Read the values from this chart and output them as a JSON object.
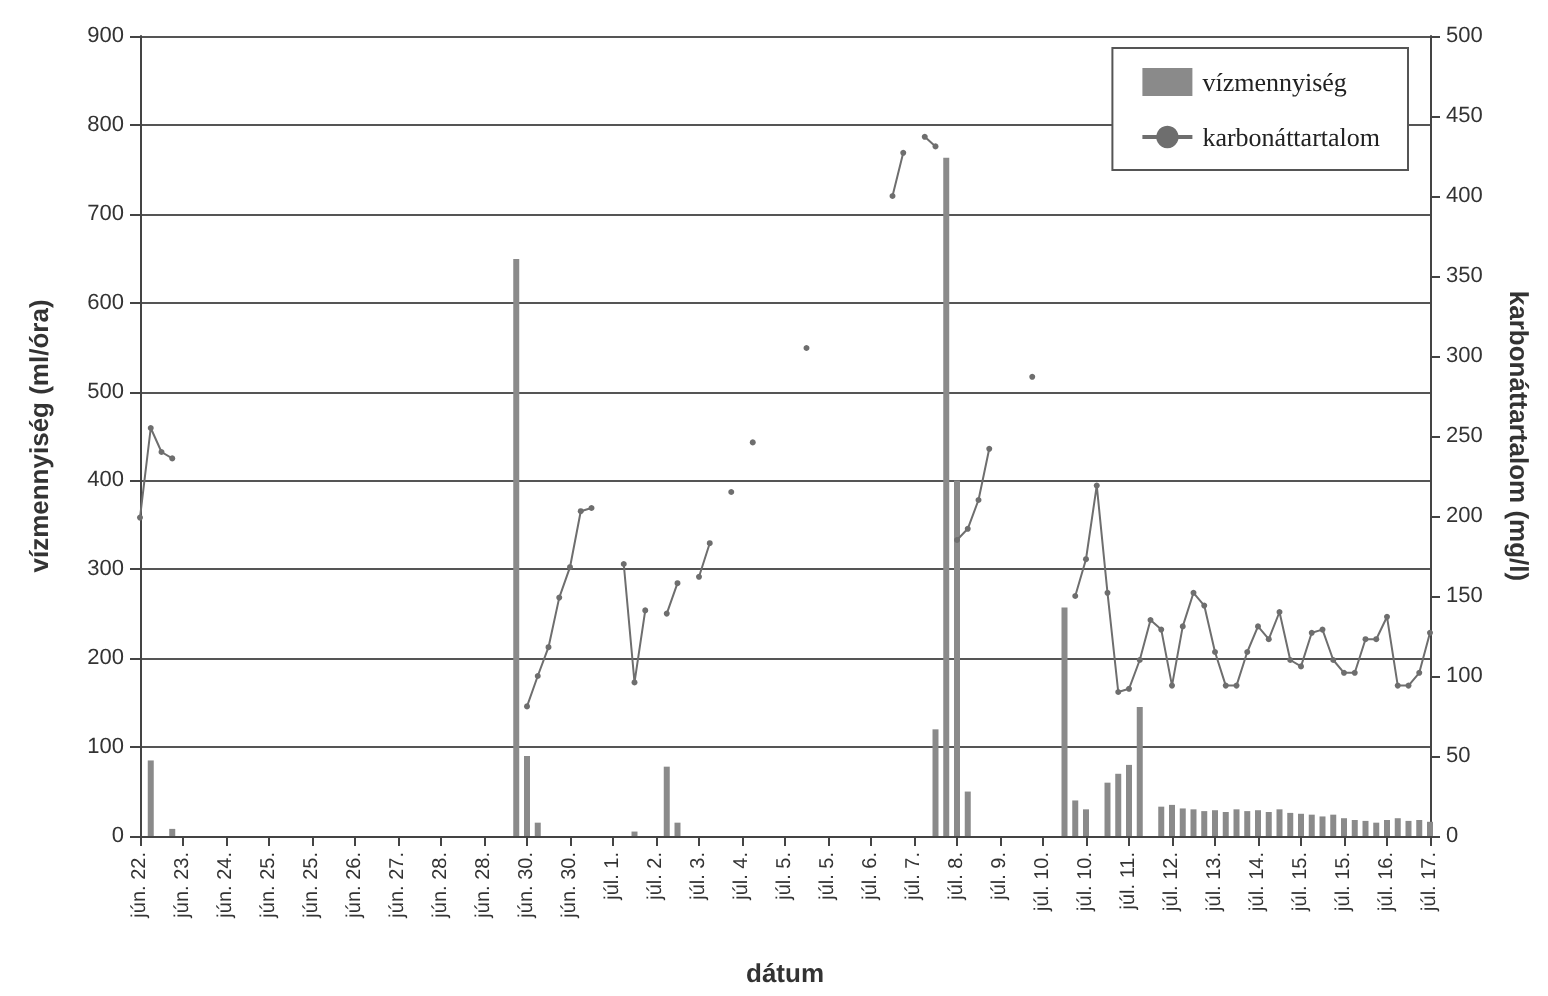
{
  "chart_data": {
    "type": "bar",
    "xlabel": "dátum",
    "ylabel": "vízmennyiség (ml/óra)",
    "y2label": "karbonáttartalom (mg/l)",
    "categories": [
      "jún. 22.",
      null,
      null,
      null,
      "jún. 23.",
      null,
      null,
      null,
      "jún. 24.",
      null,
      null,
      null,
      "jún. 25.",
      null,
      null,
      null,
      "jún. 25.",
      null,
      null,
      null,
      "jún. 26.",
      null,
      null,
      null,
      "jún. 27.",
      null,
      null,
      null,
      "jún. 28.",
      null,
      null,
      null,
      "jún. 28.",
      null,
      null,
      null,
      "jún. 30.",
      null,
      null,
      null,
      "jún. 30.",
      null,
      null,
      null,
      "júl. 1.",
      null,
      null,
      null,
      "júl. 2.",
      null,
      null,
      null,
      "júl. 3.",
      null,
      null,
      null,
      "júl. 4.",
      null,
      null,
      null,
      "júl. 5.",
      null,
      null,
      null,
      "júl. 5.",
      null,
      null,
      null,
      "júl. 6.",
      null,
      null,
      null,
      "júl. 7.",
      null,
      null,
      null,
      "júl. 8.",
      null,
      null,
      null,
      "júl. 9.",
      null,
      null,
      null,
      "júl. 10.",
      null,
      null,
      null,
      "júl. 10.",
      null,
      null,
      null,
      "júl. 11.",
      null,
      null,
      null,
      "júl. 12.",
      null,
      null,
      null,
      "júl. 13.",
      null,
      null,
      null,
      "júl. 14.",
      null,
      null,
      null,
      "júl. 15.",
      null,
      null,
      null,
      "júl. 15.",
      null,
      null,
      null,
      "júl. 16.",
      null,
      null,
      null,
      "júl. 17."
    ],
    "ylim": [
      0,
      900
    ],
    "yticks": [
      0,
      100,
      200,
      300,
      400,
      500,
      600,
      700,
      800,
      900
    ],
    "y2lim": [
      0,
      500
    ],
    "y2ticks": [
      0,
      50,
      100,
      150,
      200,
      250,
      300,
      350,
      400,
      450,
      500
    ],
    "grid": "y",
    "legend": "top right",
    "series": [
      {
        "name": "vízmennyiség",
        "color": "#8a8a8a",
        "values": [
          null,
          85,
          null,
          8,
          null,
          null,
          null,
          null,
          null,
          null,
          null,
          null,
          null,
          null,
          null,
          null,
          null,
          null,
          null,
          null,
          null,
          null,
          null,
          null,
          null,
          null,
          null,
          null,
          null,
          null,
          null,
          null,
          null,
          null,
          null,
          649,
          90,
          15,
          null,
          null,
          null,
          null,
          null,
          null,
          null,
          null,
          5,
          null,
          null,
          78,
          15,
          null,
          null,
          null,
          null,
          null,
          null,
          null,
          null,
          null,
          null,
          null,
          null,
          null,
          null,
          null,
          null,
          null,
          null,
          null,
          null,
          null,
          null,
          null,
          120,
          763,
          400,
          50,
          null,
          null,
          null,
          null,
          null,
          null,
          null,
          null,
          257,
          40,
          30,
          null,
          60,
          70,
          80,
          145,
          null,
          33,
          35,
          31,
          30,
          28,
          29,
          27,
          30,
          28,
          29,
          27,
          30,
          26,
          25,
          24,
          22,
          24,
          20,
          18,
          17,
          15,
          18,
          20,
          17,
          18,
          16
        ]
      },
      {
        "name": "karbonáttartalom",
        "type": "line",
        "axis": "y2",
        "color": "#6e6e6e",
        "marker": "circle",
        "values": [
          199,
          255,
          240,
          236,
          null,
          null,
          null,
          null,
          null,
          null,
          null,
          null,
          null,
          null,
          null,
          null,
          null,
          null,
          null,
          null,
          null,
          null,
          null,
          null,
          null,
          null,
          null,
          null,
          null,
          null,
          null,
          null,
          null,
          null,
          null,
          null,
          81,
          100,
          118,
          149,
          168,
          203,
          205,
          null,
          null,
          170,
          96,
          141,
          null,
          139,
          158,
          null,
          162,
          183,
          null,
          215,
          null,
          246,
          null,
          null,
          null,
          null,
          305,
          null,
          null,
          null,
          null,
          null,
          null,
          null,
          400,
          427,
          null,
          437,
          431,
          null,
          185,
          192,
          210,
          242,
          null,
          null,
          null,
          287,
          null,
          null,
          null,
          150,
          173,
          219,
          152,
          90,
          92,
          110,
          135,
          129,
          94,
          131,
          152,
          144,
          115,
          94,
          94,
          115,
          131,
          123,
          140,
          110,
          106,
          127,
          129,
          110,
          102,
          102,
          123,
          123,
          137,
          94,
          94,
          102,
          127
        ]
      }
    ]
  }
}
